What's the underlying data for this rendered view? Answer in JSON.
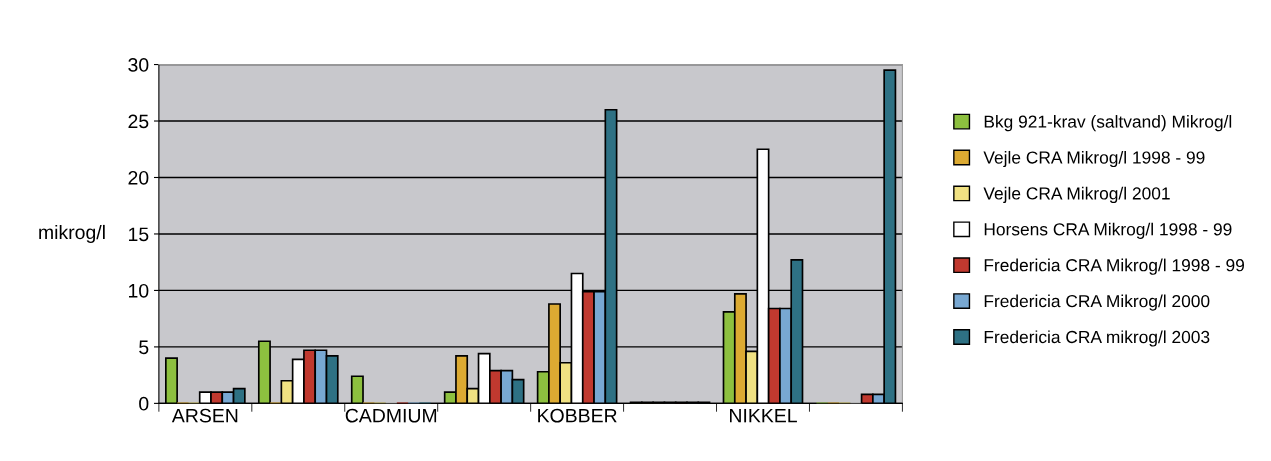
{
  "chart_data": {
    "type": "bar",
    "ylabel": "mikrog/l",
    "categories": [
      "ARSEN",
      null,
      "CADMIUM",
      null,
      "KOBBER",
      null,
      "NIKKEL",
      null
    ],
    "series": [
      {
        "name": "Bkg 921-krav (saltvand) Mikrog/l",
        "color": "#8dc03f",
        "values": [
          4,
          5.5,
          2.4,
          1,
          2.8,
          0.1,
          8.1,
          0
        ]
      },
      {
        "name": "Vejle CRA Mikrog/l 1998 - 99",
        "color": "#dcaa32",
        "values": [
          0,
          0,
          0,
          4.2,
          8.8,
          0.1,
          9.7,
          0
        ]
      },
      {
        "name": "Vejle CRA Mikrog/l 2001",
        "color": "#f0e182",
        "values": [
          0,
          2,
          0,
          1.3,
          3.6,
          0.1,
          4.6,
          0
        ]
      },
      {
        "name": "Horsens CRA Mikrog/l 1998 - 99",
        "color": "#ffffff",
        "values": [
          1,
          3.9,
          0,
          4.4,
          11.5,
          0.1,
          22.5,
          0
        ]
      },
      {
        "name": "Fredericia CRA Mikrog/l 1998 - 99",
        "color": "#c0392f",
        "values": [
          1,
          4.7,
          0,
          2.9,
          9.9,
          0.1,
          8.4,
          0.8
        ]
      },
      {
        "name": "Fredericia CRA Mikrog/l 2000",
        "color": "#78a8d2",
        "values": [
          1,
          4.7,
          0,
          2.9,
          9.9,
          0.1,
          8.4,
          0.8
        ]
      },
      {
        "name": "Fredericia CRA mikrog/l 2003",
        "color": "#2e7184",
        "values": [
          1.3,
          4.2,
          0,
          2.1,
          26,
          0.1,
          12.7,
          29.5
        ]
      }
    ],
    "ylim": [
      0,
      30
    ],
    "yticks": [
      0,
      5,
      10,
      15,
      20,
      25,
      30
    ],
    "grid": "y",
    "legend": "right"
  }
}
